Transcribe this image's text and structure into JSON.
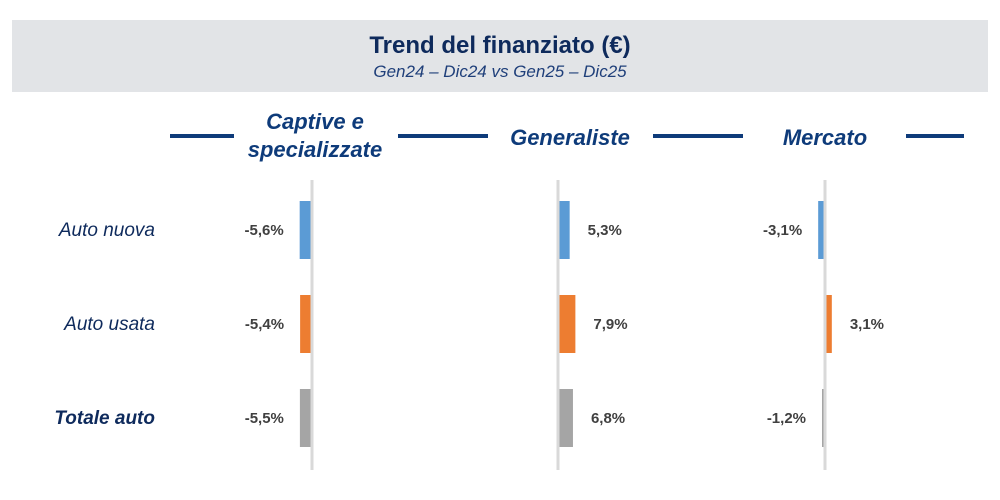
{
  "header": {
    "title": "Trend del finanziato (€)",
    "subtitle": "Gen24 – Dic24 vs Gen25 – Dic25"
  },
  "chart_data": {
    "type": "bar",
    "orientation": "horizontal",
    "title": "Trend del finanziato (€)",
    "subtitle": "Gen24 – Dic24 vs Gen25 – Dic25",
    "categories": [
      "Auto nuova",
      "Auto usata",
      "Totale auto"
    ],
    "panels": [
      {
        "name": "Captive e specializzate",
        "values": [
          -5.6,
          -5.4,
          -5.5
        ],
        "labels": [
          "-5,6%",
          "-5,4%",
          "-5,5%"
        ]
      },
      {
        "name": "Generaliste",
        "values": [
          5.3,
          7.9,
          6.8
        ],
        "labels": [
          "5,3%",
          "7,9%",
          "6,8%"
        ]
      },
      {
        "name": "Mercato",
        "values": [
          -3.1,
          3.1,
          -1.2
        ],
        "labels": [
          "-3,1%",
          "3,1%",
          "-1,2%"
        ]
      }
    ],
    "colors": [
      "#5B9BD5",
      "#ED7D31",
      "#A5A5A5"
    ],
    "axis_color": "#D9D9D9",
    "grid": false
  }
}
